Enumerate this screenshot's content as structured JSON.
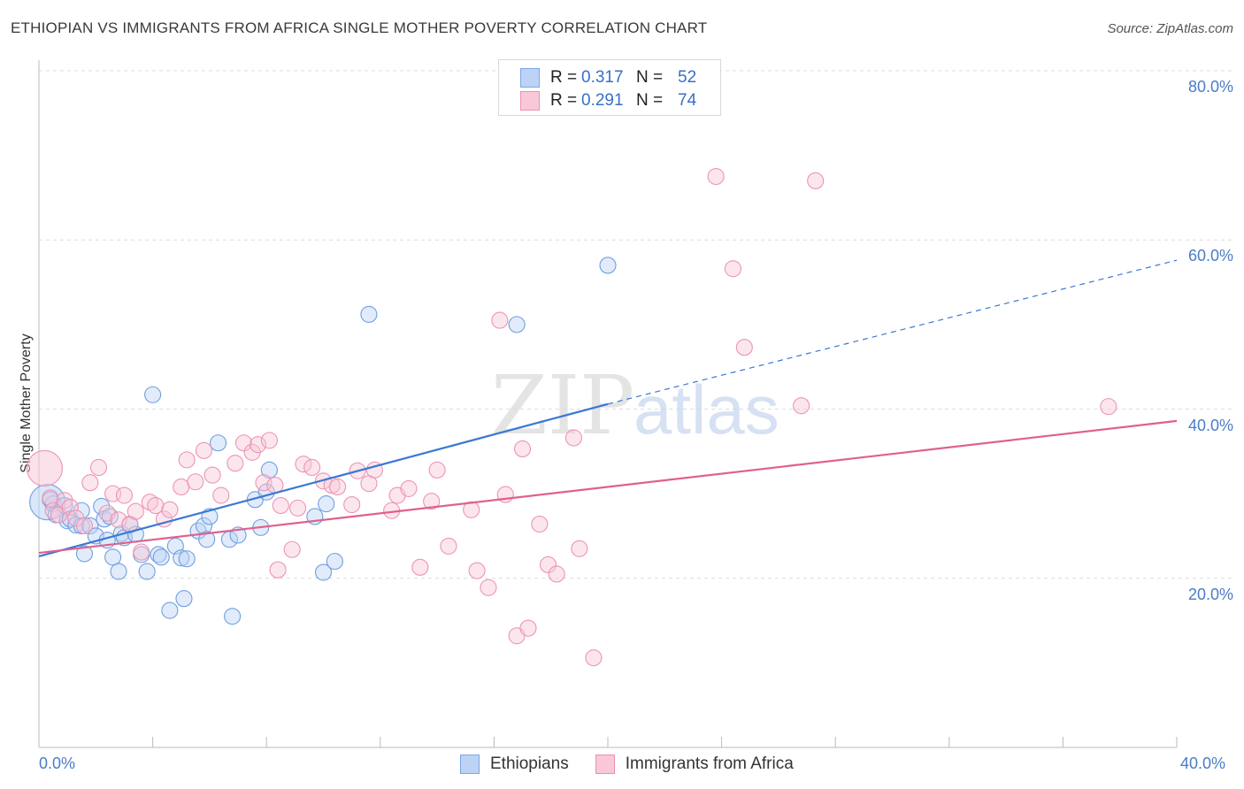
{
  "header": {
    "title": "ETHIOPIAN VS IMMIGRANTS FROM AFRICA SINGLE MOTHER POVERTY CORRELATION CHART",
    "source": "Source: ZipAtlas.com"
  },
  "watermark": {
    "part1": "ZIP",
    "part2": "atlas"
  },
  "legend": [
    {
      "r_label": "R =",
      "r_value": "0.317",
      "n_label": "N =",
      "n_value": "52",
      "color": "#7aa7e8",
      "fill": "#bcd3f5"
    },
    {
      "r_label": "R =",
      "r_value": "0.291",
      "n_label": "N =",
      "n_value": "74",
      "color": "#ef8fb0",
      "fill": "#f8c8d8"
    }
  ],
  "chart_data": {
    "type": "scatter",
    "ylabel": "Single Mother Poverty",
    "xlim": [
      0,
      40
    ],
    "ylim": [
      0,
      80
    ],
    "x_ticks": [
      "0.0%",
      "40.0%"
    ],
    "y_ticks": [
      {
        "value": 80,
        "label": "80.0%"
      },
      {
        "value": 60,
        "label": "60.0%"
      },
      {
        "value": 40,
        "label": "40.0%"
      },
      {
        "value": 20,
        "label": "20.0%"
      }
    ],
    "series": [
      {
        "name": "Ethiopians",
        "color": "#3a78d4",
        "fill": "#bcd3f5",
        "trend": {
          "x0": 0,
          "y0": 22.6,
          "x1": 20,
          "y1": 40.6,
          "dash_to_x": 40,
          "dash_to_y": 57.6
        },
        "points": [
          [
            0.3,
            29.0
          ],
          [
            0.5,
            28.8
          ],
          [
            0.4,
            29.3
          ],
          [
            0.6,
            27.5
          ],
          [
            0.9,
            28.6
          ],
          [
            1.0,
            26.8
          ],
          [
            1.1,
            27.0
          ],
          [
            1.3,
            26.3
          ],
          [
            1.5,
            26.2
          ],
          [
            1.5,
            28.0
          ],
          [
            1.6,
            22.9
          ],
          [
            1.8,
            26.2
          ],
          [
            2.0,
            25.0
          ],
          [
            2.2,
            28.5
          ],
          [
            2.3,
            27.0
          ],
          [
            2.4,
            24.5
          ],
          [
            2.5,
            27.3
          ],
          [
            2.6,
            22.5
          ],
          [
            2.8,
            20.8
          ],
          [
            2.9,
            25.3
          ],
          [
            3.0,
            24.8
          ],
          [
            3.2,
            26.3
          ],
          [
            3.4,
            25.2
          ],
          [
            3.6,
            22.8
          ],
          [
            3.8,
            20.8
          ],
          [
            4.0,
            41.7
          ],
          [
            4.2,
            22.8
          ],
          [
            4.3,
            22.5
          ],
          [
            4.6,
            16.2
          ],
          [
            4.8,
            23.8
          ],
          [
            5.0,
            22.4
          ],
          [
            5.1,
            17.6
          ],
          [
            5.2,
            22.3
          ],
          [
            5.6,
            25.6
          ],
          [
            5.8,
            26.2
          ],
          [
            6.0,
            27.3
          ],
          [
            5.9,
            24.6
          ],
          [
            6.3,
            36.0
          ],
          [
            6.8,
            15.5
          ],
          [
            6.7,
            24.6
          ],
          [
            7.0,
            25.1
          ],
          [
            7.6,
            29.3
          ],
          [
            7.8,
            26.0
          ],
          [
            8.0,
            30.2
          ],
          [
            8.1,
            32.8
          ],
          [
            9.7,
            27.3
          ],
          [
            10.0,
            20.7
          ],
          [
            10.1,
            28.8
          ],
          [
            10.4,
            22.0
          ],
          [
            11.6,
            51.2
          ],
          [
            16.8,
            50.0
          ],
          [
            20.0,
            57.0
          ]
        ]
      },
      {
        "name": "Immigrants from Africa",
        "color": "#e0608c",
        "fill": "#f8c8d8",
        "trend": {
          "x0": 0,
          "y0": 23.0,
          "x1": 40,
          "y1": 38.6
        },
        "points": [
          [
            0.2,
            33.0
          ],
          [
            0.4,
            29.5
          ],
          [
            0.5,
            28.0
          ],
          [
            0.7,
            27.5
          ],
          [
            0.9,
            29.2
          ],
          [
            1.1,
            28.4
          ],
          [
            1.3,
            27.1
          ],
          [
            1.6,
            26.2
          ],
          [
            1.8,
            31.3
          ],
          [
            2.1,
            33.1
          ],
          [
            2.4,
            27.7
          ],
          [
            2.6,
            30.0
          ],
          [
            2.8,
            26.9
          ],
          [
            3.0,
            29.8
          ],
          [
            3.2,
            26.4
          ],
          [
            3.4,
            27.9
          ],
          [
            3.6,
            23.1
          ],
          [
            3.9,
            29.0
          ],
          [
            4.1,
            28.6
          ],
          [
            4.4,
            27.0
          ],
          [
            4.6,
            28.1
          ],
          [
            5.0,
            30.8
          ],
          [
            5.2,
            34.0
          ],
          [
            5.5,
            31.4
          ],
          [
            5.8,
            35.1
          ],
          [
            6.1,
            32.2
          ],
          [
            6.4,
            29.8
          ],
          [
            6.9,
            33.6
          ],
          [
            7.2,
            36.0
          ],
          [
            7.5,
            34.9
          ],
          [
            7.7,
            35.8
          ],
          [
            7.9,
            31.3
          ],
          [
            8.1,
            36.3
          ],
          [
            8.3,
            31.0
          ],
          [
            8.4,
            21.0
          ],
          [
            8.5,
            28.6
          ],
          [
            8.9,
            23.4
          ],
          [
            9.1,
            28.3
          ],
          [
            9.3,
            33.5
          ],
          [
            9.6,
            33.1
          ],
          [
            10.0,
            31.5
          ],
          [
            10.3,
            31.0
          ],
          [
            10.5,
            30.8
          ],
          [
            11.0,
            28.7
          ],
          [
            11.2,
            32.7
          ],
          [
            11.6,
            31.2
          ],
          [
            11.8,
            32.8
          ],
          [
            12.4,
            28.0
          ],
          [
            12.6,
            29.8
          ],
          [
            13.0,
            30.6
          ],
          [
            13.4,
            21.3
          ],
          [
            13.8,
            29.1
          ],
          [
            14.0,
            32.8
          ],
          [
            14.4,
            23.8
          ],
          [
            15.2,
            28.1
          ],
          [
            15.4,
            20.9
          ],
          [
            15.8,
            18.9
          ],
          [
            16.2,
            50.5
          ],
          [
            16.4,
            29.9
          ],
          [
            16.8,
            13.2
          ],
          [
            17.0,
            35.3
          ],
          [
            17.2,
            14.1
          ],
          [
            17.6,
            26.4
          ],
          [
            17.9,
            21.6
          ],
          [
            18.2,
            20.5
          ],
          [
            18.8,
            36.6
          ],
          [
            19.0,
            23.5
          ],
          [
            19.5,
            10.6
          ],
          [
            23.8,
            67.5
          ],
          [
            24.4,
            56.6
          ],
          [
            24.8,
            47.3
          ],
          [
            26.8,
            40.4
          ],
          [
            27.3,
            67.0
          ],
          [
            37.6,
            40.3
          ]
        ]
      }
    ]
  }
}
